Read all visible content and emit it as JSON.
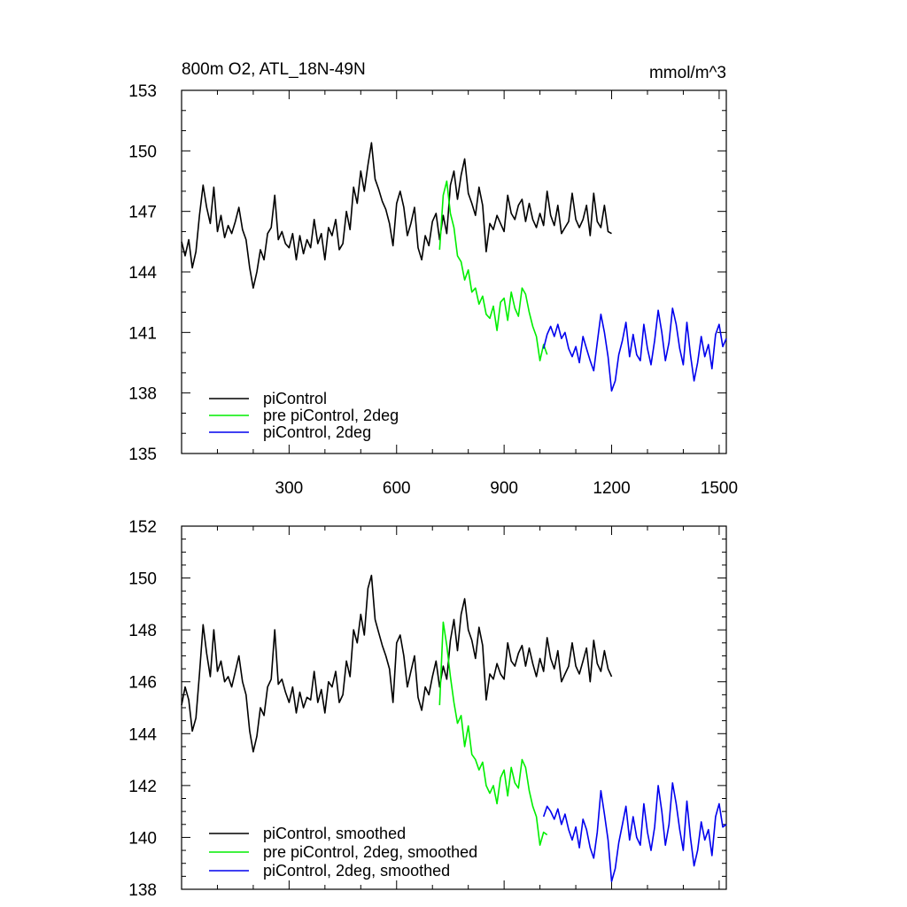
{
  "chart_data": [
    {
      "id": "top",
      "type": "line",
      "title": "800m O2, ATL_18N-49N",
      "units": "mmol/m^3",
      "xlim": [
        0,
        1520
      ],
      "ylim": [
        135,
        153
      ],
      "xticks": [
        300,
        600,
        900,
        1200,
        1500
      ],
      "yticks": [
        135,
        138,
        141,
        144,
        147,
        150,
        153
      ],
      "legend_position": "bottom-left",
      "series": [
        {
          "name": "piControl",
          "color": "#000000",
          "x": [
            0,
            10,
            20,
            30,
            40,
            50,
            60,
            70,
            80,
            90,
            100,
            110,
            120,
            130,
            140,
            150,
            160,
            170,
            180,
            190,
            200,
            210,
            220,
            230,
            240,
            250,
            260,
            270,
            280,
            290,
            300,
            310,
            320,
            330,
            340,
            350,
            360,
            370,
            380,
            390,
            400,
            410,
            420,
            430,
            440,
            450,
            460,
            470,
            480,
            490,
            500,
            510,
            520,
            530,
            540,
            550,
            560,
            570,
            580,
            590,
            600,
            610,
            620,
            630,
            640,
            650,
            660,
            670,
            680,
            690,
            700,
            710,
            720,
            730,
            740,
            750,
            760,
            770,
            780,
            790,
            800,
            810,
            820,
            830,
            840,
            850,
            860,
            870,
            880,
            890,
            900,
            910,
            920,
            930,
            940,
            950,
            960,
            970,
            980,
            990,
            1000,
            1010,
            1020,
            1030,
            1040,
            1050,
            1060,
            1070,
            1080,
            1090,
            1100,
            1110,
            1120,
            1130,
            1140,
            1150,
            1160,
            1170,
            1180,
            1190,
            1200
          ],
          "y": [
            145.5,
            144.8,
            145.6,
            144.2,
            145.0,
            146.8,
            148.3,
            147.2,
            146.4,
            148.2,
            146.0,
            146.8,
            145.7,
            146.3,
            145.9,
            146.5,
            147.2,
            146.1,
            145.6,
            144.2,
            143.2,
            144.0,
            145.1,
            144.6,
            145.9,
            146.2,
            147.8,
            145.6,
            146.0,
            145.4,
            145.2,
            145.9,
            144.6,
            145.8,
            144.9,
            145.6,
            145.2,
            146.6,
            145.4,
            145.9,
            144.6,
            146.2,
            145.8,
            146.6,
            145.1,
            145.4,
            147.0,
            146.1,
            148.2,
            147.4,
            149.0,
            148.0,
            149.3,
            150.4,
            148.6,
            148.1,
            147.5,
            147.1,
            146.4,
            145.3,
            147.4,
            148.0,
            147.2,
            145.8,
            146.4,
            147.2,
            145.2,
            144.6,
            145.8,
            145.3,
            146.5,
            146.9,
            145.6,
            146.8,
            145.9,
            148.3,
            149.0,
            147.6,
            148.8,
            149.6,
            147.9,
            147.4,
            146.8,
            148.2,
            147.3,
            145.0,
            146.4,
            146.1,
            146.8,
            146.4,
            146.0,
            147.8,
            146.9,
            146.6,
            147.3,
            147.6,
            146.5,
            147.4,
            146.6,
            146.2,
            146.9,
            146.3,
            148.0,
            146.8,
            146.3,
            147.3,
            145.9,
            146.2,
            146.5,
            147.9,
            146.6,
            146.2,
            146.6,
            147.3,
            145.8,
            147.9,
            146.5,
            146.2,
            147.3,
            146.0,
            145.9
          ]
        },
        {
          "name": "pre piControl, 2deg",
          "color": "#00ee00",
          "x": [
            720,
            730,
            740,
            750,
            760,
            770,
            780,
            790,
            800,
            810,
            820,
            830,
            840,
            850,
            860,
            870,
            880,
            890,
            900,
            910,
            920,
            930,
            940,
            950,
            960,
            970,
            980,
            990,
            1000,
            1010,
            1020
          ],
          "y": [
            145.1,
            147.8,
            148.5,
            146.9,
            146.2,
            144.8,
            144.5,
            143.6,
            144.1,
            143.0,
            143.2,
            142.4,
            142.8,
            141.9,
            141.7,
            142.3,
            141.1,
            142.5,
            142.7,
            141.6,
            143.0,
            142.2,
            141.8,
            143.2,
            142.9,
            142.0,
            141.3,
            140.8,
            139.6,
            140.4,
            139.9
          ]
        },
        {
          "name": "piControl, 2deg",
          "color": "#0000ee",
          "x": [
            1010,
            1020,
            1030,
            1040,
            1050,
            1060,
            1070,
            1080,
            1090,
            1100,
            1110,
            1120,
            1130,
            1140,
            1150,
            1160,
            1170,
            1180,
            1190,
            1200,
            1210,
            1220,
            1230,
            1240,
            1250,
            1260,
            1270,
            1280,
            1290,
            1300,
            1310,
            1320,
            1330,
            1340,
            1350,
            1360,
            1370,
            1380,
            1390,
            1400,
            1410,
            1420,
            1430,
            1440,
            1450,
            1460,
            1470,
            1480,
            1490,
            1500,
            1510,
            1520
          ],
          "y": [
            140.2,
            140.9,
            141.3,
            140.8,
            141.4,
            140.7,
            141.0,
            140.2,
            139.8,
            140.3,
            139.5,
            140.8,
            140.2,
            139.6,
            139.1,
            140.5,
            141.9,
            141.0,
            139.8,
            138.1,
            138.6,
            139.9,
            140.6,
            141.5,
            139.8,
            140.9,
            139.9,
            139.6,
            141.4,
            140.2,
            139.4,
            140.6,
            142.1,
            141.0,
            139.6,
            140.5,
            142.2,
            141.4,
            140.2,
            139.4,
            141.5,
            139.9,
            138.6,
            139.5,
            140.8,
            139.8,
            140.4,
            139.2,
            140.9,
            141.4,
            140.3,
            140.7
          ]
        }
      ]
    },
    {
      "id": "bottom",
      "type": "line",
      "title": "",
      "xlim": [
        0,
        1520
      ],
      "ylim": [
        138,
        152
      ],
      "xticks": [
        300,
        600,
        900,
        1200,
        1500
      ],
      "yticks": [
        138,
        140,
        142,
        144,
        146,
        148,
        150,
        152
      ],
      "legend_position": "bottom-left",
      "series": [
        {
          "name": "piControl, smoothed",
          "color": "#000000",
          "x": [
            0,
            10,
            20,
            30,
            40,
            50,
            60,
            70,
            80,
            90,
            100,
            110,
            120,
            130,
            140,
            150,
            160,
            170,
            180,
            190,
            200,
            210,
            220,
            230,
            240,
            250,
            260,
            270,
            280,
            290,
            300,
            310,
            320,
            330,
            340,
            350,
            360,
            370,
            380,
            390,
            400,
            410,
            420,
            430,
            440,
            450,
            460,
            470,
            480,
            490,
            500,
            510,
            520,
            530,
            540,
            550,
            560,
            570,
            580,
            590,
            600,
            610,
            620,
            630,
            640,
            650,
            660,
            670,
            680,
            690,
            700,
            710,
            720,
            730,
            740,
            750,
            760,
            770,
            780,
            790,
            800,
            810,
            820,
            830,
            840,
            850,
            860,
            870,
            880,
            890,
            900,
            910,
            920,
            930,
            940,
            950,
            960,
            970,
            980,
            990,
            1000,
            1010,
            1020,
            1030,
            1040,
            1050,
            1060,
            1070,
            1080,
            1090,
            1100,
            1110,
            1120,
            1130,
            1140,
            1150,
            1160,
            1170,
            1180,
            1190,
            1200
          ],
          "y": [
            145.1,
            145.8,
            145.3,
            144.1,
            144.6,
            146.3,
            148.2,
            147.1,
            146.2,
            148.0,
            146.4,
            146.8,
            146.0,
            146.2,
            145.8,
            146.4,
            147.0,
            146.0,
            145.5,
            144.1,
            143.3,
            143.9,
            145.0,
            144.7,
            145.8,
            146.1,
            148.0,
            145.9,
            146.1,
            145.6,
            145.2,
            145.8,
            144.8,
            145.6,
            145.0,
            145.4,
            145.3,
            146.4,
            145.2,
            145.7,
            144.8,
            146.0,
            145.8,
            146.4,
            145.2,
            145.5,
            146.8,
            146.2,
            148.0,
            147.5,
            148.6,
            147.8,
            149.6,
            150.1,
            148.4,
            147.9,
            147.4,
            147.0,
            146.5,
            145.2,
            147.5,
            147.8,
            147.0,
            145.8,
            146.4,
            147.0,
            145.4,
            144.9,
            145.8,
            145.5,
            146.2,
            146.8,
            145.8,
            146.6,
            146.1,
            147.6,
            148.4,
            147.2,
            148.6,
            149.2,
            148.0,
            147.6,
            146.9,
            148.1,
            147.4,
            145.3,
            146.3,
            146.1,
            146.7,
            146.3,
            146.1,
            147.5,
            146.8,
            146.6,
            147.1,
            147.4,
            146.6,
            147.3,
            146.7,
            146.2,
            146.9,
            146.4,
            147.7,
            146.9,
            146.5,
            147.2,
            146.0,
            146.3,
            146.6,
            147.5,
            146.6,
            146.3,
            146.8,
            147.3,
            146.0,
            147.6,
            146.7,
            146.4,
            147.2,
            146.5,
            146.2
          ]
        },
        {
          "name": "pre piControl, 2deg, smoothed",
          "color": "#00ee00",
          "x": [
            720,
            730,
            740,
            750,
            760,
            770,
            780,
            790,
            800,
            810,
            820,
            830,
            840,
            850,
            860,
            870,
            880,
            890,
            900,
            910,
            920,
            930,
            940,
            950,
            960,
            970,
            980,
            990,
            1000,
            1010,
            1020
          ],
          "y": [
            145.1,
            148.3,
            147.4,
            146.2,
            145.2,
            144.4,
            144.7,
            143.5,
            144.3,
            143.2,
            143.0,
            142.6,
            142.9,
            142.0,
            141.7,
            142.0,
            141.3,
            142.3,
            142.6,
            141.6,
            142.7,
            142.1,
            141.9,
            143.0,
            142.7,
            141.8,
            141.2,
            140.8,
            139.7,
            140.2,
            140.1
          ]
        },
        {
          "name": "piControl, 2deg, smoothed",
          "color": "#0000ee",
          "x": [
            1010,
            1020,
            1030,
            1040,
            1050,
            1060,
            1070,
            1080,
            1090,
            1100,
            1110,
            1120,
            1130,
            1140,
            1150,
            1160,
            1170,
            1180,
            1190,
            1200,
            1210,
            1220,
            1230,
            1240,
            1250,
            1260,
            1270,
            1280,
            1290,
            1300,
            1310,
            1320,
            1330,
            1340,
            1350,
            1360,
            1370,
            1380,
            1390,
            1400,
            1410,
            1420,
            1430,
            1440,
            1450,
            1460,
            1470,
            1480,
            1490,
            1500,
            1510,
            1520
          ],
          "y": [
            140.8,
            141.2,
            141.0,
            140.7,
            141.1,
            140.5,
            140.9,
            140.3,
            139.9,
            140.4,
            139.6,
            140.7,
            140.3,
            139.6,
            139.2,
            140.2,
            141.8,
            140.9,
            139.9,
            138.3,
            138.8,
            139.8,
            140.5,
            141.2,
            139.9,
            140.8,
            140.0,
            139.7,
            141.3,
            140.2,
            139.5,
            140.4,
            142.0,
            141.0,
            139.7,
            140.5,
            142.1,
            141.3,
            140.3,
            139.5,
            141.4,
            140.0,
            138.9,
            139.5,
            140.6,
            139.9,
            140.3,
            139.3,
            140.8,
            141.3,
            140.4,
            140.5
          ]
        }
      ]
    }
  ]
}
